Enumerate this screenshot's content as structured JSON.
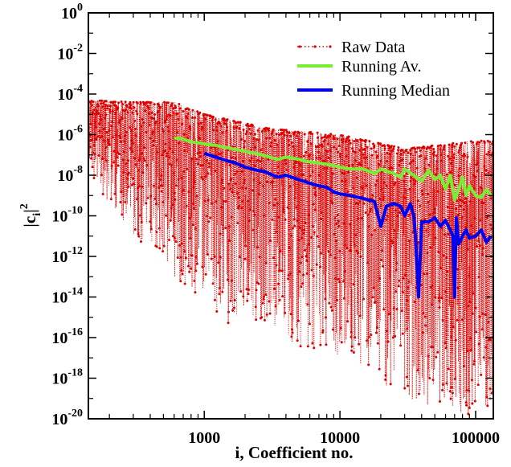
{
  "chart_data": {
    "type": "line",
    "title": "",
    "xlabel": "i, Coefficient no.",
    "ylabel_main": "|c",
    "ylabel_sub": "i",
    "ylabel_sup": "2",
    "x_scale": "log",
    "y_scale": "log",
    "xlim": [
      140,
      135000
    ],
    "ylim": [
      1e-20,
      1
    ],
    "x_ticks": [
      {
        "value": 1000,
        "label": "1000"
      },
      {
        "value": 10000,
        "label": "10000"
      },
      {
        "value": 100000,
        "label": "100000"
      }
    ],
    "y_ticks": [
      {
        "value": 1,
        "base": "10",
        "exp": "0"
      },
      {
        "value": 0.01,
        "base": "10",
        "exp": "-2"
      },
      {
        "value": 0.0001,
        "base": "10",
        "exp": "-4"
      },
      {
        "value": 1e-06,
        "base": "10",
        "exp": "-6"
      },
      {
        "value": 1e-08,
        "base": "10",
        "exp": "-8"
      },
      {
        "value": 1e-10,
        "base": "10",
        "exp": "-10"
      },
      {
        "value": 1e-12,
        "base": "10",
        "exp": "-12"
      },
      {
        "value": 1e-14,
        "base": "10",
        "exp": "-14"
      },
      {
        "value": 1e-16,
        "base": "10",
        "exp": "-16"
      },
      {
        "value": 1e-18,
        "base": "10",
        "exp": "-18"
      },
      {
        "value": 1e-20,
        "base": "10",
        "exp": "-20"
      }
    ],
    "legend_position": "top-right",
    "series": [
      {
        "name": "Raw Data",
        "color": "#dd0000",
        "style": "dotted-with-markers",
        "upper_envelope": [
          [
            140,
            5e-05
          ],
          [
            300,
            4e-05
          ],
          [
            600,
            4e-05
          ],
          [
            1000,
            1e-05
          ],
          [
            3000,
            2e-06
          ],
          [
            10000,
            1e-06
          ],
          [
            30000,
            2e-07
          ],
          [
            100000,
            5e-07
          ],
          [
            135000,
            5e-07
          ]
        ],
        "lower_envelope": [
          [
            140,
            1e-08
          ],
          [
            300,
            1e-11
          ],
          [
            600,
            1e-13
          ],
          [
            1000,
            1e-15
          ],
          [
            3000,
            1e-16
          ],
          [
            10000,
            1e-17
          ],
          [
            30000,
            1e-19
          ],
          [
            100000,
            1e-20
          ],
          [
            135000,
            1e-20
          ]
        ]
      },
      {
        "name": "Running Av.",
        "color": "#77ee33",
        "style": "solid",
        "x": [
          600,
          700,
          800,
          1000,
          1200,
          1500,
          2000,
          2500,
          3000,
          3500,
          4000,
          5000,
          6000,
          7000,
          8000,
          10000,
          12000,
          15000,
          18000,
          20000,
          25000,
          28000,
          30000,
          35000,
          40000,
          45000,
          50000,
          55000,
          60000,
          65000,
          70000,
          75000,
          80000,
          85000,
          90000,
          100000,
          110000,
          120000,
          130000
        ],
        "y": [
          7e-07,
          6e-07,
          4.5e-07,
          3.5e-07,
          3e-07,
          2.2e-07,
          1.5e-07,
          1.1e-07,
          8e-08,
          6e-08,
          8e-08,
          6e-08,
          4.5e-08,
          4e-08,
          3.5e-08,
          2.5e-08,
          2e-08,
          2e-08,
          1.2e-08,
          2e-08,
          1.2e-08,
          8e-09,
          2e-08,
          1e-08,
          5e-09,
          1.8e-08,
          6e-09,
          1e-08,
          2e-09,
          1e-08,
          6e-10,
          2e-09,
          8e-09,
          1e-09,
          3e-09,
          1e-09,
          8e-10,
          2e-09,
          1e-09
        ]
      },
      {
        "name": "Running Median",
        "color": "#0000ee",
        "style": "solid",
        "x": [
          1000,
          1200,
          1500,
          1700,
          2000,
          2500,
          2800,
          3000,
          3500,
          4000,
          5000,
          6000,
          7000,
          8000,
          9000,
          10000,
          12000,
          15000,
          18000,
          20000,
          22000,
          25000,
          28000,
          30000,
          33000,
          35000,
          36000,
          38000,
          40000,
          45000,
          50000,
          55000,
          60000,
          65000,
          68000,
          70000,
          72000,
          75000,
          80000,
          85000,
          90000,
          100000,
          110000,
          120000,
          130000
        ],
        "y": [
          1.2e-07,
          8e-08,
          5e-08,
          4e-08,
          2.5e-08,
          1.7e-08,
          1.5e-08,
          1.2e-08,
          8e-09,
          1e-08,
          6e-09,
          4e-09,
          3e-09,
          2.5e-09,
          1.5e-09,
          1.2e-09,
          1e-09,
          7e-10,
          5e-10,
          3e-11,
          3e-10,
          4e-10,
          3e-10,
          1e-10,
          4e-10,
          1e-10,
          1e-11,
          1e-14,
          5e-11,
          5e-11,
          8e-11,
          3e-11,
          6e-11,
          2e-11,
          1e-11,
          1e-14,
          8e-11,
          4e-12,
          1e-11,
          2e-11,
          8e-12,
          1e-11,
          2e-11,
          5e-12,
          1e-11
        ]
      }
    ]
  }
}
